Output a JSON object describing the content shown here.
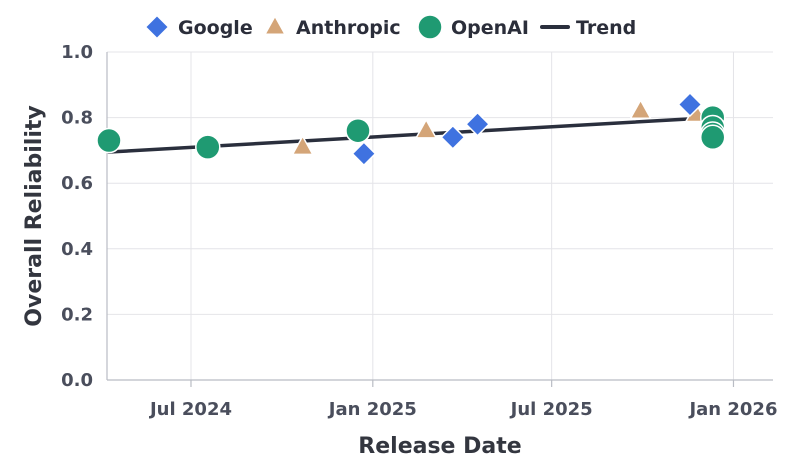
{
  "chart_data": {
    "type": "scatter",
    "xlabel": "Release Date",
    "ylabel": "Overall Reliability",
    "xlim": [
      "2024-04-07",
      "2026-02-10"
    ],
    "ylim": [
      0,
      1.0
    ],
    "x_ticks": [
      "2024-07-01",
      "2025-01-01",
      "2025-07-01",
      "2026-01-01"
    ],
    "x_tick_labels": [
      "Jul 2024",
      "Jan 2025",
      "Jul 2025",
      "Jan 2026"
    ],
    "y_ticks": [
      0.0,
      0.2,
      0.4,
      0.6,
      0.8,
      1.0
    ],
    "y_tick_labels": [
      "0.0",
      "0.2",
      "0.4",
      "0.6",
      "0.8",
      "1.0"
    ],
    "grid": true,
    "legend_position": "top",
    "series": [
      {
        "name": "Google",
        "marker": "diamond",
        "color": "#3f72e0",
        "points": [
          {
            "x": "2024-12-23",
            "y": 0.69
          },
          {
            "x": "2025-03-23",
            "y": 0.74
          },
          {
            "x": "2025-04-17",
            "y": 0.78
          },
          {
            "x": "2025-11-18",
            "y": 0.84
          }
        ]
      },
      {
        "name": "Anthropic",
        "marker": "triangle",
        "color": "#d4a578",
        "points": [
          {
            "x": "2024-10-22",
            "y": 0.71
          },
          {
            "x": "2025-02-24",
            "y": 0.76
          },
          {
            "x": "2025-09-29",
            "y": 0.82
          },
          {
            "x": "2025-11-24",
            "y": 0.81
          }
        ]
      },
      {
        "name": "OpenAI",
        "marker": "circle",
        "color": "#1f9a72",
        "points": [
          {
            "x": "2024-04-09",
            "y": 0.73
          },
          {
            "x": "2024-07-18",
            "y": 0.71
          },
          {
            "x": "2024-12-17",
            "y": 0.76
          },
          {
            "x": "2025-12-11",
            "y": 0.8
          },
          {
            "x": "2025-12-11",
            "y": 0.77
          },
          {
            "x": "2025-12-11",
            "y": 0.75
          },
          {
            "x": "2025-12-11",
            "y": 0.74
          }
        ]
      }
    ],
    "trend": {
      "name": "Trend",
      "color": "#2a2f3d",
      "start": {
        "x": "2024-04-09",
        "y": 0.695
      },
      "end": {
        "x": "2025-12-11",
        "y": 0.8
      }
    }
  }
}
